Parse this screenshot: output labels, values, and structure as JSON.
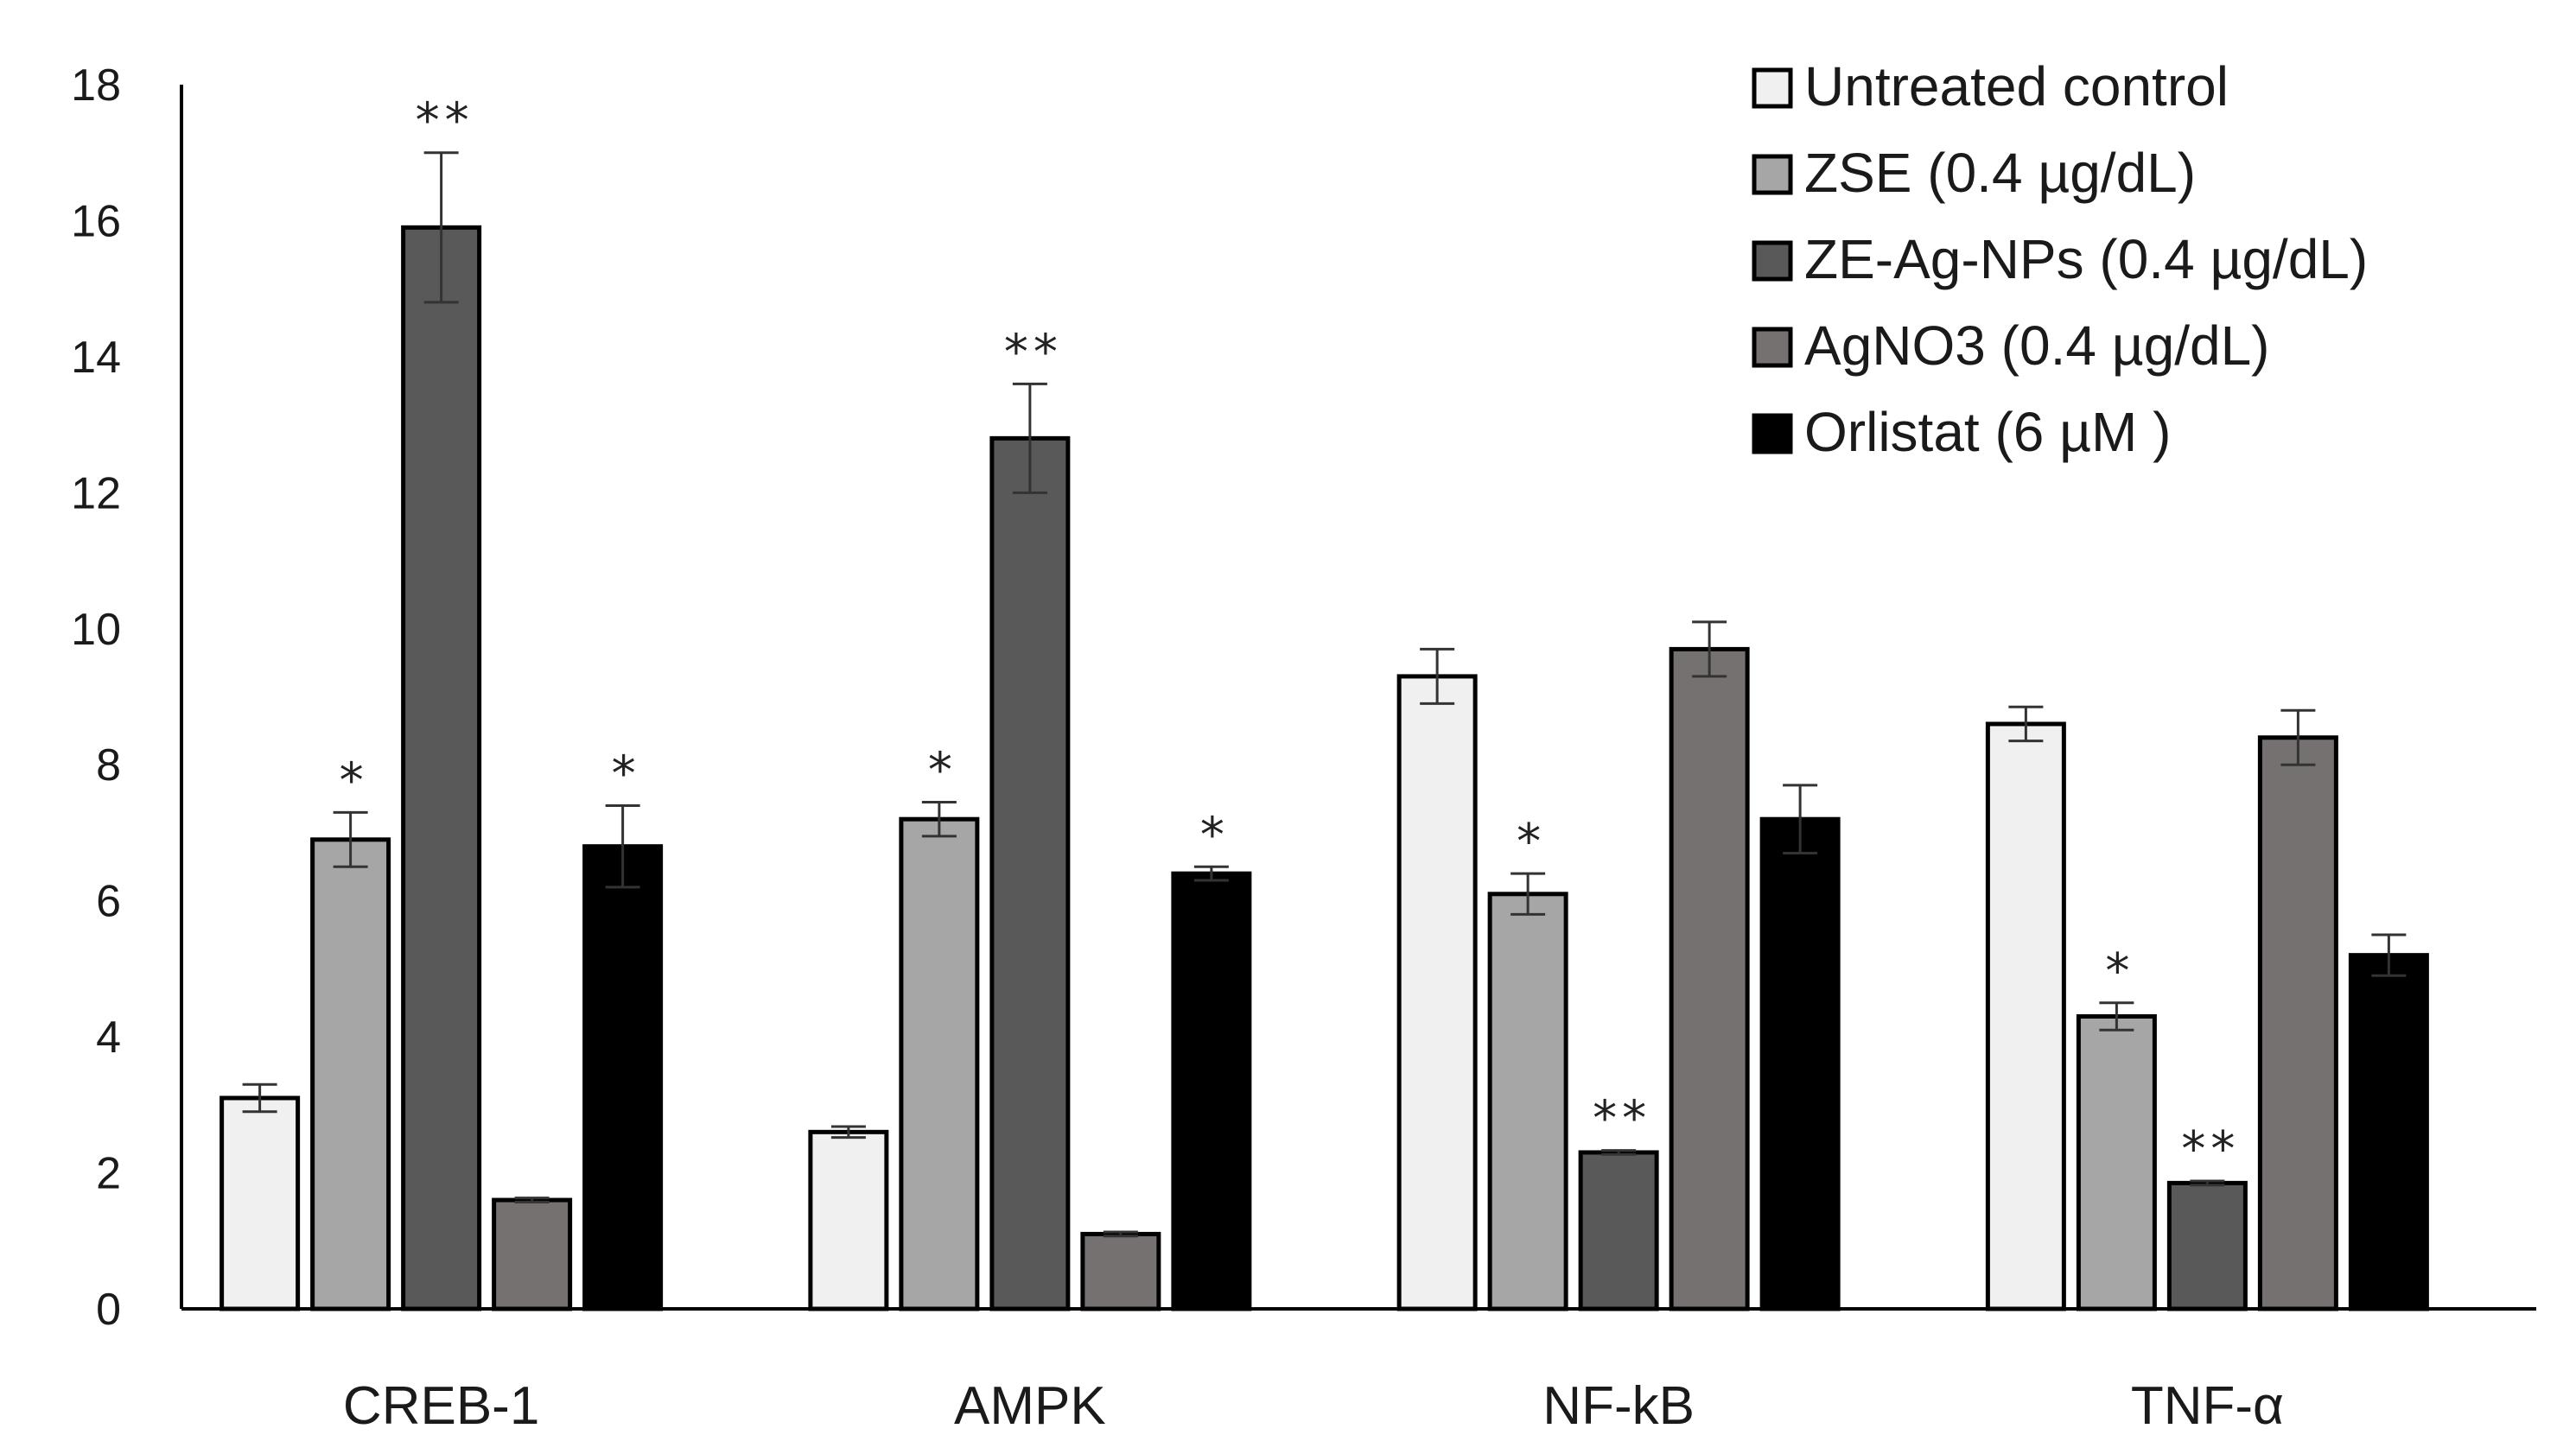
{
  "chart_data": {
    "type": "bar",
    "title": "",
    "xlabel": "",
    "ylabel": "",
    "ylim": [
      0,
      18
    ],
    "yticks": [
      "0",
      "2",
      "4",
      "6",
      "8",
      "10",
      "12",
      "14",
      "16",
      "18"
    ],
    "grid": false,
    "legend_position": "top-right",
    "categories": [
      "CREB-1",
      "AMPK",
      "NF-kB",
      "TNF-α"
    ],
    "series": [
      {
        "name": "Untreated control",
        "color": "#f0f0f0",
        "values": [
          3.1,
          2.6,
          9.3,
          8.6
        ],
        "errors": [
          0.2,
          0.08,
          0.4,
          0.25
        ],
        "significance": [
          "",
          "",
          "",
          ""
        ]
      },
      {
        "name": "ZSE (0.4 µg/dL)",
        "color": "#a6a6a6",
        "values": [
          6.9,
          7.2,
          6.1,
          4.3
        ],
        "errors": [
          0.4,
          0.25,
          0.3,
          0.2
        ],
        "significance": [
          "*",
          "*",
          "*",
          "*"
        ]
      },
      {
        "name": "ZE-Ag-NPs (0.4 µg/dL)",
        "color": "#595959",
        "values": [
          15.9,
          12.8,
          2.3,
          1.85
        ],
        "errors": [
          1.1,
          0.8,
          0.03,
          0.03
        ],
        "significance": [
          "**",
          "**",
          "**",
          "**"
        ]
      },
      {
        "name": "AgNO3 (0.4 µg/dL)",
        "color": "#767171",
        "values": [
          1.6,
          1.1,
          9.7,
          8.4
        ],
        "errors": [
          0.03,
          0.03,
          0.4,
          0.4
        ],
        "significance": [
          "",
          "",
          "",
          ""
        ]
      },
      {
        "name": "Orlistat (6 µM )",
        "color": "#000000",
        "values": [
          6.8,
          6.4,
          7.2,
          5.2
        ],
        "errors": [
          0.6,
          0.1,
          0.5,
          0.3
        ],
        "significance": [
          "*",
          "*",
          "",
          ""
        ]
      }
    ]
  }
}
